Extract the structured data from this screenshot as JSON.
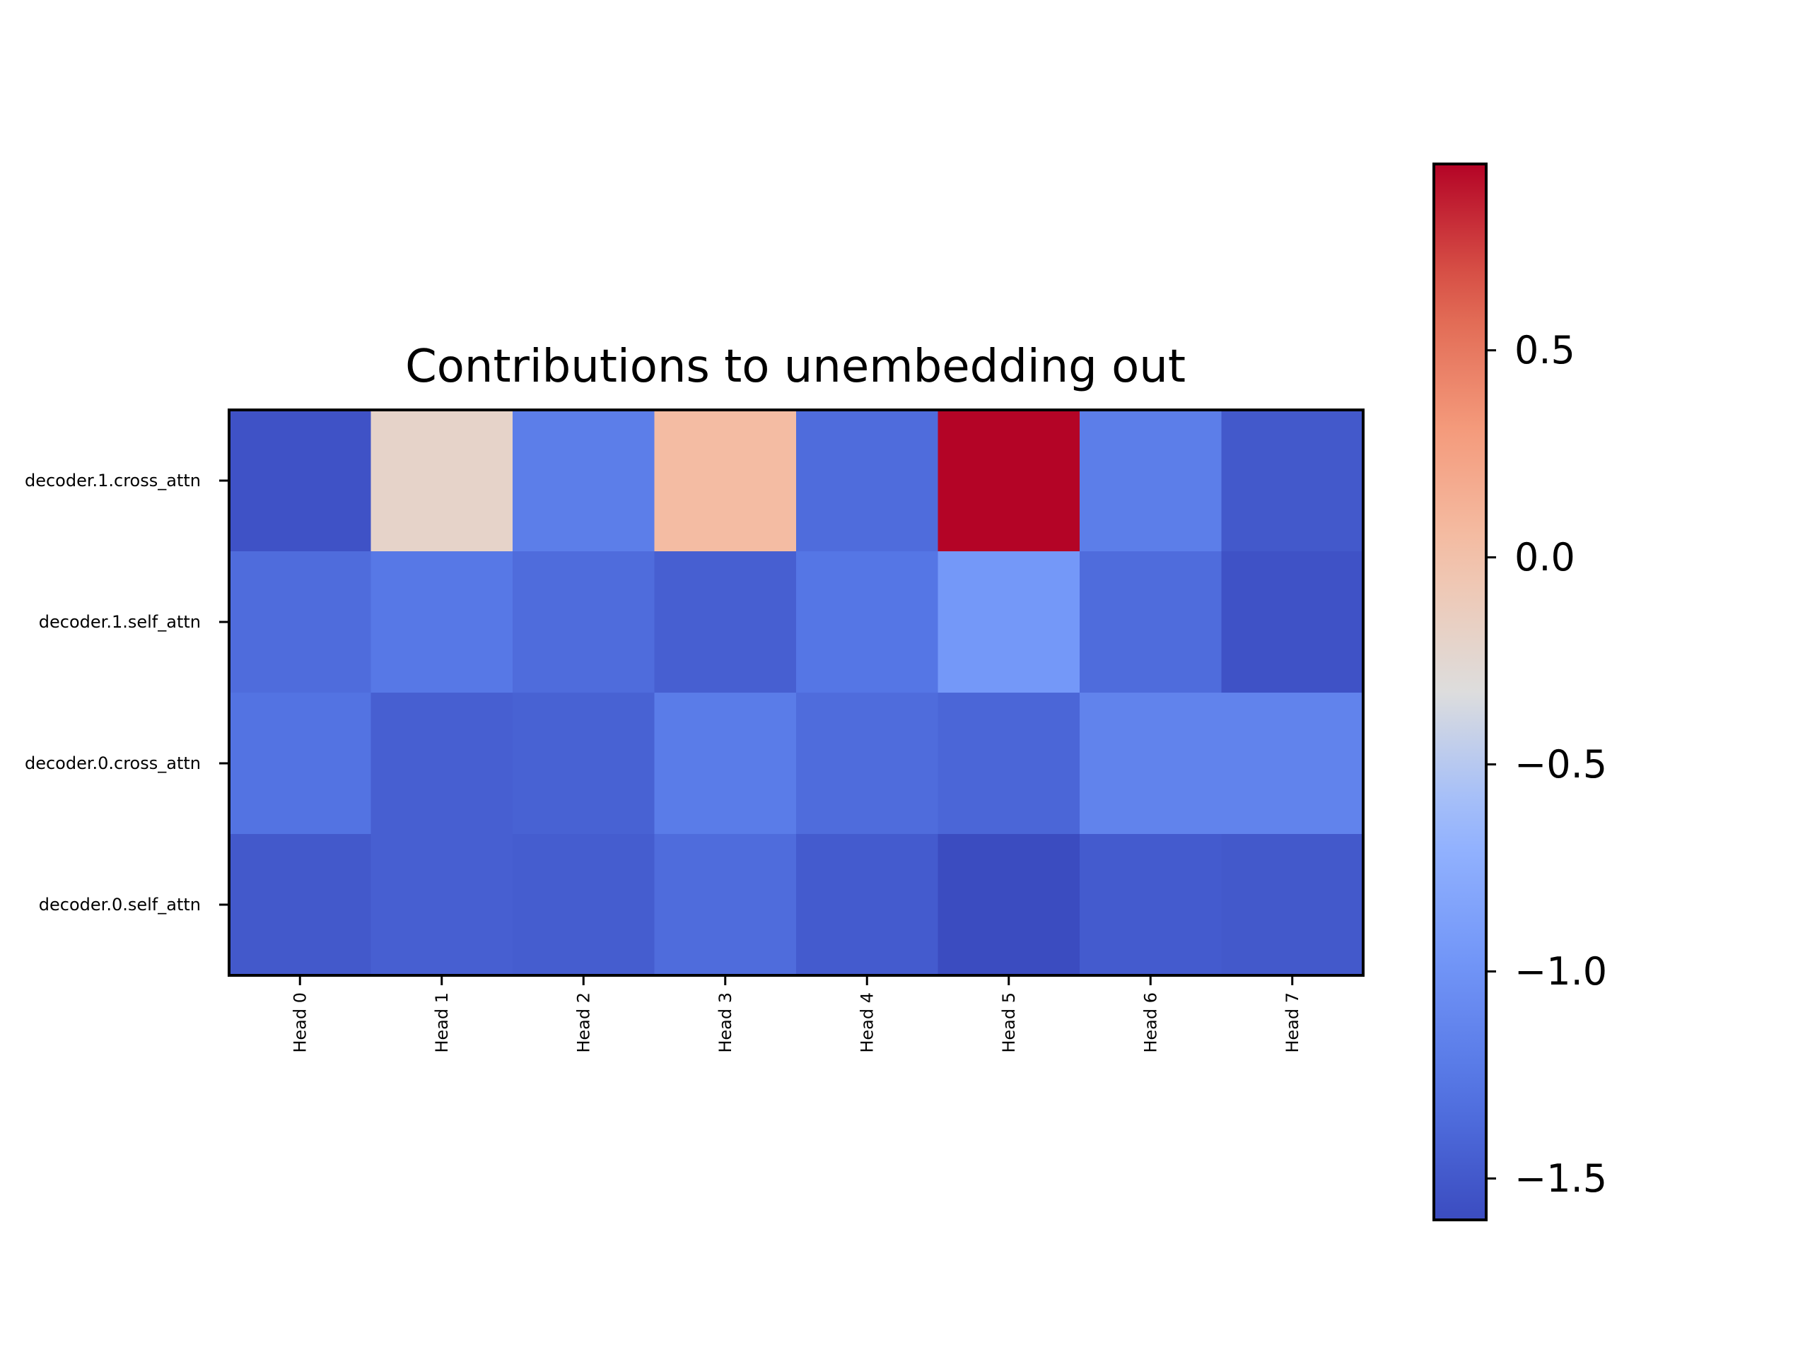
{
  "chart_data": {
    "type": "heatmap",
    "title": "Contributions to unembedding out",
    "xlabel": "",
    "ylabel": "",
    "x_categories": [
      "Head 0",
      "Head 1",
      "Head 2",
      "Head 3",
      "Head 4",
      "Head 5",
      "Head 6",
      "Head 7"
    ],
    "y_categories": [
      "decoder.1.cross_attn",
      "decoder.1.self_attn",
      "decoder.0.cross_attn",
      "decoder.0.self_attn"
    ],
    "values": [
      [
        -1.55,
        -0.2,
        -1.2,
        0.05,
        -1.35,
        0.95,
        -1.2,
        -1.5
      ],
      [
        -1.35,
        -1.25,
        -1.35,
        -1.45,
        -1.27,
        -0.95,
        -1.35,
        -1.55
      ],
      [
        -1.3,
        -1.45,
        -1.43,
        -1.22,
        -1.35,
        -1.4,
        -1.15,
        -1.15
      ],
      [
        -1.5,
        -1.45,
        -1.47,
        -1.35,
        -1.48,
        -1.6,
        -1.48,
        -1.5
      ]
    ],
    "colorscale": "coolwarm",
    "vmin": -1.6,
    "vmax": 0.95,
    "colorbar": {
      "ticks": [
        0.5,
        0.0,
        -0.5,
        -1.0,
        -1.5
      ],
      "tick_labels": [
        "0.5",
        "0.0",
        "−0.5",
        "−1.0",
        "−1.5"
      ]
    },
    "grid": false,
    "legend": "none"
  }
}
